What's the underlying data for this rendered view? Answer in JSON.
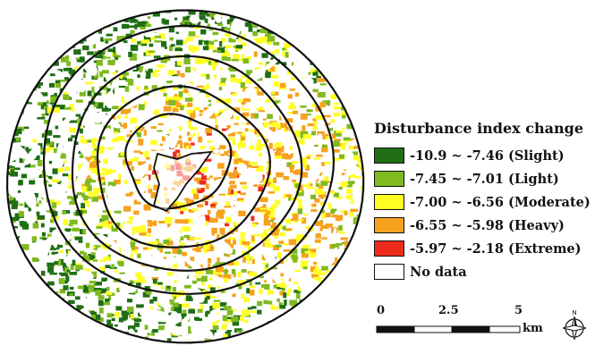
{
  "legend": {
    "title": "Disturbance index change",
    "items": [
      {
        "label": "-10.9 ~ -7.46 (Slight)",
        "color": "#1f6e14"
      },
      {
        "label": "-7.45 ~ -7.01 (Light)",
        "color": "#7fba1f"
      },
      {
        "label": "-7.00 ~ -6.56 (Moderate)",
        "color": "#ffff24"
      },
      {
        "label": "-6.55 ~ -5.98 (Heavy)",
        "color": "#f6a21e"
      },
      {
        "label": "-5.97 ~ -2.18 (Extreme)",
        "color": "#ee2b1d"
      },
      {
        "label": "No data",
        "color": "#ffffff"
      }
    ]
  },
  "scale_bar": {
    "ticks": [
      "0",
      "2.5",
      "5"
    ],
    "unit": "km"
  },
  "north_arrow": {
    "label": "N",
    "icon": "north-arrow-icon"
  },
  "map": {
    "rings": 5,
    "category_colors": [
      "#1f6e14",
      "#7fba1f",
      "#ffff24",
      "#f6a21e",
      "#ee2b1d"
    ]
  }
}
